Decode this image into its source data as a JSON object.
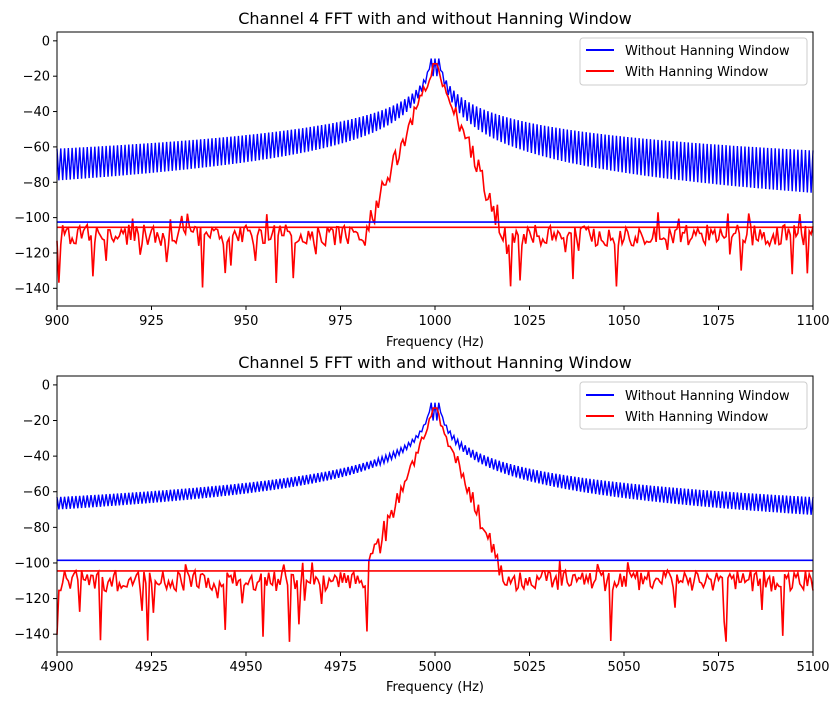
{
  "chart_data": [
    {
      "type": "line",
      "title": "Channel 4 FFT with and without Hanning Window",
      "xlabel": "Frequency (Hz)",
      "ylabel": "",
      "xlim": [
        900,
        1100
      ],
      "ylim": [
        -150,
        5
      ],
      "xticks": [
        900,
        925,
        950,
        975,
        1000,
        1025,
        1050,
        1075,
        1100
      ],
      "yticks": [
        0,
        -20,
        -40,
        -60,
        -80,
        -100,
        -120,
        -140
      ],
      "grid": false,
      "legend_position": "top-right",
      "peak_frequency": 1000,
      "series": [
        {
          "name": "Without Hanning Window",
          "color": "#0000ff",
          "style": "oscillating-band",
          "peak": -10,
          "band_upper_at_edges": [
            -61,
            -62
          ],
          "band_lower_at_edges": [
            -79,
            -86
          ],
          "noise_floor_line": -102.5
        },
        {
          "name": "With Hanning Window",
          "color": "#ff0000",
          "style": "noisy",
          "peak": -13,
          "noise_mean": -110,
          "noise_min": -132,
          "noise_floor_line": -105.5
        }
      ]
    },
    {
      "type": "line",
      "title": "Channel 5 FFT with and without Hanning Window",
      "xlabel": "Frequency (Hz)",
      "ylabel": "",
      "xlim": [
        4900,
        5100
      ],
      "ylim": [
        -150,
        5
      ],
      "xticks": [
        4900,
        4925,
        4950,
        4975,
        5000,
        5025,
        5050,
        5075,
        5100
      ],
      "yticks": [
        0,
        -20,
        -40,
        -60,
        -80,
        -100,
        -120,
        -140
      ],
      "grid": false,
      "legend_position": "top-right",
      "peak_frequency": 5000,
      "series": [
        {
          "name": "Without Hanning Window",
          "color": "#0000ff",
          "style": "oscillating-band",
          "peak": -10,
          "band_upper_at_edges": [
            -63,
            -63
          ],
          "band_lower_at_edges": [
            -70,
            -73
          ],
          "noise_floor_line": -98.5
        },
        {
          "name": "With Hanning Window",
          "color": "#ff0000",
          "style": "noisy",
          "peak": -13,
          "noise_mean": -110,
          "noise_min": -137,
          "noise_floor_line": -104.5
        }
      ]
    }
  ]
}
